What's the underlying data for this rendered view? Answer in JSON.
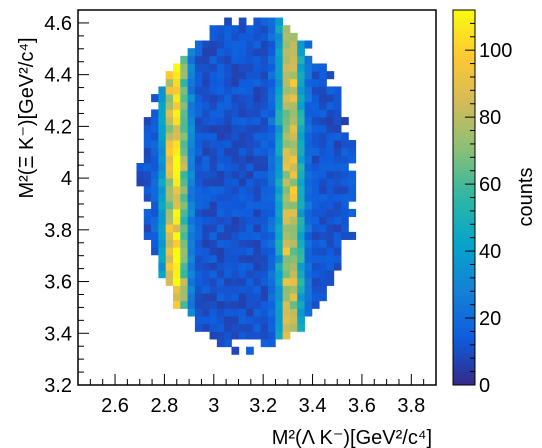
{
  "chart_data": {
    "type": "heatmap",
    "xlabel": "M²(Λ K⁻)[GeV²/c⁴]",
    "ylabel": "M²(Ξ K⁻)[GeV²/c⁴]",
    "zlabel": "counts",
    "xlim": [
      2.45,
      3.9
    ],
    "ylim": [
      3.2,
      4.65
    ],
    "zlim": [
      0,
      112
    ],
    "x_ticks": [
      "2.6",
      "2.8",
      "3",
      "3.2",
      "3.4",
      "3.6",
      "3.8"
    ],
    "y_ticks": [
      "3.2",
      "3.4",
      "3.6",
      "3.8",
      "4",
      "4.2",
      "4.4",
      "4.6"
    ],
    "z_ticks": [
      "0",
      "20",
      "40",
      "60",
      "80",
      "100"
    ],
    "grid": false,
    "colorbar": "right",
    "colorscale": [
      "#352a87",
      "#0f5cdd",
      "#1481d6",
      "#06a4ca",
      "#2eb7a4",
      "#87bf77",
      "#d1bb59",
      "#fec832",
      "#f9fb0e"
    ],
    "bins": {
      "x_bin_width": 0.0296,
      "y_bin_width": 0.0296,
      "populated_region": {
        "ellipse_center": [
          3.14,
          3.98
        ],
        "ellipse_semi_axes": [
          0.43,
          0.63
        ]
      },
      "bands": [
        {
          "axis": "x",
          "center": 2.845,
          "peak_counts": 105
        },
        {
          "axis": "x",
          "center": 3.31,
          "peak_counts": 85
        }
      ],
      "background_counts": 12
    }
  }
}
